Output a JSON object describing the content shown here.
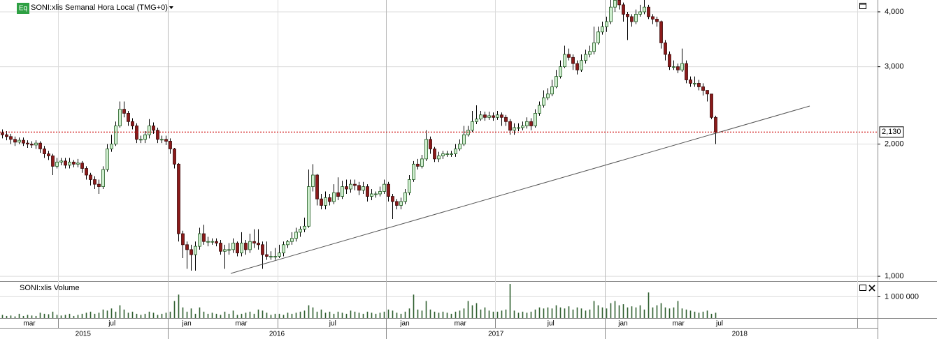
{
  "header": {
    "badge": "Eq",
    "title": "SONI:xlis Semanal Hora Local (TMG+0)",
    "volume_title": "SONI:xlis Volume"
  },
  "chart_data": {
    "type": "candlestick",
    "log": true,
    "grid": true,
    "up_color": "#cfeecf",
    "down_color": "#8b1a1a",
    "volume_color": "#2e5e2e",
    "trend_color": "#555555",
    "last_color": "#cc0000",
    "xlim": [
      -0.5,
      208.67
    ],
    "ylim": [
      975,
      4256
    ],
    "yticks": [
      {
        "value": 4000,
        "label": "4,000"
      },
      {
        "value": 3000,
        "label": "3,000"
      },
      {
        "value": 2000,
        "label": "2,000"
      },
      {
        "value": 1000,
        "label": "1,000"
      }
    ],
    "xgrid": [
      13.33,
      39.5,
      65.67,
      91.5,
      117.5,
      143.67,
      203.83
    ],
    "year_sep": [
      39.5,
      91.5,
      143.67
    ],
    "xticks": [
      {
        "value": 6.5,
        "label": "mar"
      },
      {
        "value": 26.2,
        "label": "jul"
      },
      {
        "value": 44,
        "label": "jan"
      },
      {
        "value": 57,
        "label": "mar"
      },
      {
        "value": 78.8,
        "label": "jul"
      },
      {
        "value": 96,
        "label": "jan"
      },
      {
        "value": 109.2,
        "label": "mar"
      },
      {
        "value": 130.8,
        "label": "jul"
      },
      {
        "value": 148,
        "label": "jan"
      },
      {
        "value": 161.2,
        "label": "mar"
      },
      {
        "value": 171,
        "label": "jul"
      }
    ],
    "years": [
      {
        "value": 19.3,
        "label": "2015"
      },
      {
        "value": 65.5,
        "label": "2016"
      },
      {
        "value": 117.7,
        "label": "2017"
      },
      {
        "value": 175.8,
        "label": "2018"
      }
    ],
    "last_price": {
      "value": 2130,
      "label": "2,130"
    },
    "trendline": {
      "x": [
        54.5,
        192.5
      ],
      "y": [
        1015,
        2441
      ]
    },
    "open": [
      2120,
      2100,
      2080,
      2050,
      2020,
      2040,
      2010,
      2000,
      1990,
      2010,
      1950,
      1900,
      1880,
      1780,
      1820,
      1830,
      1790,
      1820,
      1800,
      1810,
      1760,
      1700,
      1660,
      1620,
      1600,
      1750,
      1950,
      2000,
      2200,
      2400,
      2350,
      2250,
      2200,
      2050,
      2050,
      2100,
      2200,
      2150,
      2050,
      2050,
      2030,
      1950,
      1800,
      1250,
      1180,
      1150,
      1120,
      1170,
      1250,
      1200,
      1200,
      1200,
      1190,
      1140,
      1150,
      1150,
      1190,
      1130,
      1190,
      1150,
      1200,
      1190,
      1180,
      1120,
      1110,
      1110,
      1110,
      1130,
      1180,
      1200,
      1220,
      1260,
      1280,
      1300,
      1600,
      1700,
      1500,
      1450,
      1510,
      1480,
      1550,
      1520,
      1600,
      1580,
      1620,
      1610,
      1570,
      1600,
      1520,
      1540,
      1540,
      1560,
      1620,
      1520,
      1480,
      1450,
      1480,
      1550,
      1660,
      1800,
      1780,
      1850,
      2050,
      1950,
      1850,
      1880,
      1900,
      1900,
      1900,
      1950,
      2000,
      2100,
      2150,
      2250,
      2280,
      2330,
      2300,
      2320,
      2300,
      2330,
      2300,
      2250,
      2150,
      2180,
      2180,
      2200,
      2250,
      2200,
      2350,
      2450,
      2550,
      2600,
      2700,
      2850,
      3000,
      3200,
      3150,
      3050,
      2950,
      3100,
      3200,
      3250,
      3400,
      3600,
      3700,
      3800,
      4100,
      4250,
      4150,
      3950,
      3900,
      3800,
      3950,
      4000,
      4100,
      3900,
      3850,
      3800,
      3400,
      3200,
      3000,
      3000,
      2950,
      3050,
      2800,
      2750,
      2750,
      2700,
      2650,
      2600,
      2300
    ],
    "high": [
      2160,
      2140,
      2110,
      2080,
      2070,
      2070,
      2040,
      2030,
      2040,
      2030,
      1980,
      1930,
      1900,
      1860,
      1860,
      1860,
      1860,
      1840,
      1850,
      1830,
      1780,
      1720,
      1690,
      1660,
      1780,
      2000,
      2100,
      2250,
      2500,
      2500,
      2380,
      2290,
      2230,
      2090,
      2140,
      2280,
      2240,
      2180,
      2090,
      2090,
      2060,
      1960,
      1810,
      1270,
      1200,
      1180,
      1200,
      1290,
      1310,
      1230,
      1220,
      1220,
      1210,
      1180,
      1190,
      1220,
      1200,
      1260,
      1210,
      1250,
      1280,
      1280,
      1200,
      1200,
      1140,
      1160,
      1180,
      1200,
      1210,
      1260,
      1290,
      1300,
      1360,
      1750,
      1800,
      1710,
      1540,
      1560,
      1540,
      1620,
      1680,
      1650,
      1660,
      1660,
      1660,
      1640,
      1640,
      1620,
      1580,
      1560,
      1600,
      1660,
      1640,
      1540,
      1500,
      1510,
      1580,
      1700,
      1830,
      1850,
      1890,
      2150,
      2080,
      1970,
      1920,
      1930,
      1930,
      1930,
      2000,
      2050,
      2200,
      2200,
      2380,
      2450,
      2380,
      2370,
      2370,
      2360,
      2380,
      2360,
      2330,
      2280,
      2230,
      2230,
      2250,
      2300,
      2290,
      2400,
      2500,
      2650,
      2680,
      2800,
      2950,
      3100,
      3350,
      3300,
      3200,
      3100,
      3200,
      3280,
      3350,
      3700,
      3700,
      3800,
      3900,
      4300,
      4350,
      4300,
      4200,
      4000,
      3950,
      4050,
      4150,
      4300,
      4150,
      3950,
      3900,
      3820,
      3450,
      3250,
      3100,
      3050,
      3300,
      3100,
      2850,
      2850,
      2800,
      2750,
      2650,
      2600,
      2320
    ],
    "low": [
      2060,
      2040,
      2000,
      1980,
      2000,
      1980,
      1960,
      1960,
      1950,
      1910,
      1860,
      1840,
      1700,
      1760,
      1790,
      1760,
      1760,
      1770,
      1770,
      1720,
      1660,
      1610,
      1580,
      1540,
      1580,
      1730,
      1920,
      1980,
      2180,
      2300,
      2200,
      2160,
      2010,
      2010,
      2010,
      2060,
      2110,
      2010,
      2010,
      1990,
      1900,
      1760,
      1200,
      1100,
      1040,
      1030,
      1030,
      1150,
      1180,
      1170,
      1180,
      1170,
      1120,
      1040,
      1120,
      1130,
      1110,
      1110,
      1120,
      1130,
      1160,
      1150,
      1040,
      1090,
      1090,
      1090,
      1100,
      1110,
      1160,
      1180,
      1200,
      1230,
      1260,
      1290,
      1560,
      1450,
      1420,
      1420,
      1450,
      1460,
      1490,
      1500,
      1540,
      1550,
      1570,
      1530,
      1540,
      1480,
      1490,
      1510,
      1520,
      1540,
      1480,
      1350,
      1420,
      1420,
      1460,
      1530,
      1640,
      1750,
      1760,
      1830,
      1900,
      1820,
      1820,
      1850,
      1870,
      1870,
      1870,
      1930,
      1980,
      2080,
      2130,
      2220,
      2260,
      2260,
      2270,
      2260,
      2270,
      2200,
      2200,
      2100,
      2100,
      2140,
      2150,
      2170,
      2150,
      2180,
      2320,
      2420,
      2520,
      2570,
      2680,
      2820,
      2980,
      3100,
      2950,
      2880,
      2920,
      3050,
      3150,
      3200,
      3370,
      3550,
      3600,
      3750,
      4000,
      4050,
      3800,
      3450,
      3700,
      3750,
      3900,
      3950,
      3850,
      3750,
      3700,
      3300,
      3100,
      2950,
      2950,
      2900,
      2920,
      2750,
      2700,
      2700,
      2650,
      2580,
      2500,
      2280,
      2000
    ],
    "close": [
      2100,
      2080,
      2050,
      2020,
      2040,
      2010,
      2000,
      1990,
      2010,
      1950,
      1900,
      1880,
      1780,
      1820,
      1830,
      1790,
      1820,
      1800,
      1810,
      1760,
      1700,
      1660,
      1620,
      1600,
      1750,
      1950,
      2000,
      2200,
      2400,
      2350,
      2250,
      2200,
      2050,
      2050,
      2100,
      2200,
      2150,
      2050,
      2050,
      2030,
      1950,
      1800,
      1250,
      1180,
      1150,
      1120,
      1170,
      1250,
      1200,
      1200,
      1200,
      1190,
      1140,
      1150,
      1150,
      1190,
      1130,
      1190,
      1150,
      1200,
      1190,
      1180,
      1120,
      1110,
      1110,
      1110,
      1130,
      1180,
      1200,
      1220,
      1260,
      1280,
      1300,
      1600,
      1700,
      1500,
      1450,
      1510,
      1480,
      1550,
      1520,
      1600,
      1580,
      1620,
      1610,
      1570,
      1600,
      1520,
      1540,
      1540,
      1560,
      1620,
      1520,
      1480,
      1450,
      1480,
      1550,
      1660,
      1800,
      1780,
      1850,
      2050,
      1950,
      1850,
      1880,
      1900,
      1900,
      1900,
      1950,
      2000,
      2100,
      2150,
      2250,
      2280,
      2330,
      2300,
      2320,
      2300,
      2330,
      2300,
      2250,
      2150,
      2180,
      2180,
      2200,
      2250,
      2200,
      2350,
      2450,
      2550,
      2600,
      2700,
      2850,
      3000,
      3200,
      3150,
      3050,
      2950,
      3100,
      3200,
      3250,
      3400,
      3600,
      3700,
      3800,
      4100,
      4250,
      4150,
      3950,
      3900,
      3800,
      3950,
      4000,
      4100,
      3900,
      3850,
      3800,
      3400,
      3200,
      3000,
      3000,
      2950,
      3050,
      2800,
      2750,
      2750,
      2700,
      2650,
      2600,
      2300,
      2130
    ],
    "volume_ylim": [
      0,
      1700000
    ],
    "volume_ticks": [
      {
        "value": 1000000,
        "label": "1 000 000"
      }
    ],
    "volume": [
      150000,
      100000,
      120000,
      80000,
      200000,
      100000,
      150000,
      120000,
      100000,
      250000,
      200000,
      180000,
      300000,
      150000,
      120000,
      150000,
      200000,
      100000,
      150000,
      200000,
      250000,
      300000,
      200000,
      250000,
      400000,
      350000,
      450000,
      300000,
      600000,
      400000,
      250000,
      300000,
      200000,
      150000,
      200000,
      300000,
      250000,
      150000,
      200000,
      250000,
      300000,
      800000,
      1100000,
      500000,
      300000,
      450000,
      200000,
      500000,
      300000,
      200000,
      250000,
      200000,
      150000,
      300000,
      200000,
      350000,
      150000,
      200000,
      250000,
      300000,
      200000,
      400000,
      350000,
      250000,
      150000,
      200000,
      200000,
      150000,
      250000,
      200000,
      250000,
      300000,
      350000,
      600000,
      500000,
      300000,
      400000,
      250000,
      300000,
      200000,
      300000,
      250000,
      200000,
      350000,
      300000,
      250000,
      200000,
      300000,
      250000,
      200000,
      250000,
      300000,
      400000,
      350000,
      250000,
      200000,
      300000,
      450000,
      1100000,
      400000,
      350000,
      800000,
      400000,
      300000,
      250000,
      300000,
      250000,
      200000,
      300000,
      350000,
      450000,
      800000,
      600000,
      700000,
      400000,
      500000,
      350000,
      300000,
      300000,
      350000,
      400000,
      1600000,
      350000,
      250000,
      300000,
      250000,
      300000,
      400000,
      500000,
      450000,
      500000,
      450000,
      600000,
      500000,
      450000,
      550000,
      400000,
      500000,
      450000,
      350000,
      400000,
      800000,
      600000,
      500000,
      450000,
      700000,
      800000,
      600000,
      650000,
      500000,
      550000,
      500000,
      600000,
      400000,
      1200000,
      500000,
      600000,
      700000,
      500000,
      450000,
      500000,
      800000,
      450000,
      400000,
      350000,
      300000,
      250000,
      300000,
      350000,
      200000,
      250000
    ]
  }
}
